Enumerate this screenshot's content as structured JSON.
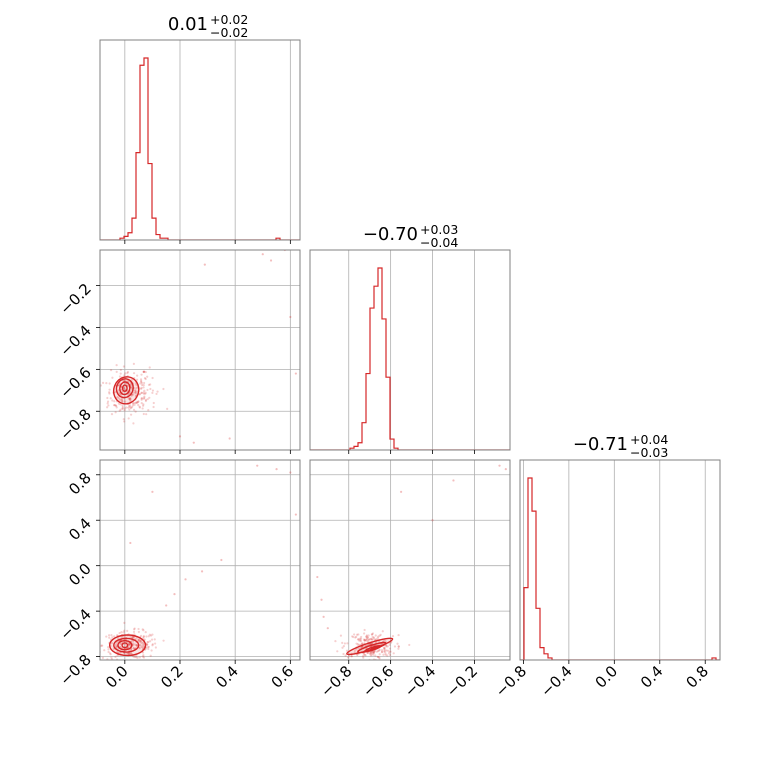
{
  "chart_data": {
    "type": "corner",
    "color": "#d62728",
    "grid": true,
    "parameters": [
      {
        "title": {
          "median": "0.01",
          "plus": "+0.02",
          "minus": "−0.02"
        },
        "range": [
          -0.09,
          0.635
        ],
        "ticks": [
          0.0,
          0.2,
          0.4,
          0.6
        ],
        "tick_labels": [
          "0.0",
          "0.2",
          "0.4",
          "0.6"
        ]
      },
      {
        "title": {
          "median": "−0.70",
          "plus": "+0.03",
          "minus": "−0.04"
        },
        "range": [
          -0.985,
          -0.03
        ],
        "ticks": [
          -0.8,
          -0.6,
          -0.4,
          -0.2
        ],
        "tick_labels": [
          "−0.8",
          "−0.6",
          "−0.4",
          "−0.2"
        ]
      },
      {
        "title": {
          "median": "−0.71",
          "plus": "+0.04",
          "minus": "−0.03"
        },
        "range": [
          -0.83,
          0.93
        ],
        "ticks": [
          -0.8,
          -0.4,
          0.0,
          0.4,
          0.8
        ],
        "tick_labels": [
          "−0.8",
          "−0.4",
          "0.0",
          "0.4",
          "0.8"
        ]
      }
    ],
    "histograms": [
      {
        "param": 0,
        "bin_start": -0.09,
        "bin_width": 0.0145,
        "counts": [
          0,
          0,
          0,
          0,
          0,
          1,
          2,
          4,
          12,
          48,
          96,
          100,
          42,
          12,
          3,
          1,
          1,
          0,
          0,
          0,
          0,
          0,
          0,
          0,
          0,
          0,
          0,
          0,
          0,
          0,
          0,
          0,
          0,
          0,
          0,
          0,
          0,
          0,
          0,
          0,
          0,
          0,
          0,
          0,
          1,
          0,
          0,
          0,
          0,
          0
        ]
      },
      {
        "param": 1,
        "bin_start": -0.985,
        "bin_width": 0.0191,
        "counts": [
          0,
          0,
          0,
          0,
          0,
          0,
          0,
          0,
          0,
          0,
          1,
          2,
          4,
          15,
          42,
          78,
          90,
          100,
          72,
          40,
          6,
          1,
          0,
          0,
          0,
          0,
          0,
          0,
          0,
          0,
          0,
          0,
          0,
          0,
          0,
          0,
          0,
          0,
          0,
          0,
          0,
          0,
          0,
          0,
          0,
          0,
          0,
          0,
          0,
          0
        ]
      },
      {
        "param": 2,
        "bin_start": -0.83,
        "bin_width": 0.0352,
        "counts": [
          0,
          35,
          88,
          72,
          25,
          6,
          3,
          1,
          0,
          0,
          0,
          0,
          0,
          0,
          0,
          0,
          0,
          0,
          0,
          0,
          0,
          0,
          0,
          0,
          0,
          0,
          0,
          0,
          0,
          0,
          0,
          0,
          0,
          0,
          0,
          0,
          0,
          0,
          0,
          0,
          0,
          0,
          0,
          0,
          0,
          0,
          0,
          0,
          1,
          0
        ]
      }
    ],
    "scatter_panels": [
      {
        "x_param": 0,
        "y_param": 1,
        "contours": [
          {
            "cx": 0.005,
            "cy": -0.7,
            "rx": 0.045,
            "ry": 0.065,
            "rot": 20
          },
          {
            "cx": 0.0,
            "cy": -0.69,
            "rx": 0.03,
            "ry": 0.045,
            "rot": 15
          },
          {
            "cx": 0.0,
            "cy": -0.69,
            "rx": 0.018,
            "ry": 0.03,
            "rot": 10
          },
          {
            "cx": 0.0,
            "cy": -0.69,
            "rx": 0.008,
            "ry": 0.015,
            "rot": 0
          }
        ],
        "cloud": {
          "cx": 0.02,
          "cy": -0.71,
          "sx": 0.045,
          "sy": 0.055
        },
        "outliers": [
          [
            0.5,
            -0.05
          ],
          [
            0.53,
            -0.08
          ],
          [
            0.58,
            -0.03
          ],
          [
            0.29,
            -0.1
          ],
          [
            0.2,
            -0.92
          ],
          [
            0.25,
            -0.95
          ],
          [
            0.38,
            -0.93
          ],
          [
            0.6,
            -0.35
          ],
          [
            0.62,
            -0.62
          ]
        ]
      },
      {
        "x_param": 0,
        "y_param": 2,
        "contours": [
          {
            "cx": 0.01,
            "cy": -0.7,
            "rx": 0.065,
            "ry": 0.09,
            "rot": 0
          },
          {
            "cx": 0.005,
            "cy": -0.7,
            "rx": 0.045,
            "ry": 0.06,
            "rot": 0
          },
          {
            "cx": 0.0,
            "cy": -0.7,
            "rx": 0.025,
            "ry": 0.04,
            "rot": 0
          },
          {
            "cx": 0.0,
            "cy": -0.7,
            "rx": 0.01,
            "ry": 0.02,
            "rot": 0
          }
        ],
        "cloud": {
          "cx": 0.02,
          "cy": -0.7,
          "sx": 0.05,
          "sy": 0.06
        },
        "outliers": [
          [
            0.48,
            0.88
          ],
          [
            0.55,
            0.85
          ],
          [
            0.6,
            0.82
          ],
          [
            0.62,
            0.45
          ],
          [
            0.1,
            0.65
          ],
          [
            0.02,
            0.2
          ],
          [
            0.28,
            -0.05
          ],
          [
            0.22,
            -0.12
          ],
          [
            0.35,
            0.05
          ],
          [
            0.15,
            -0.35
          ],
          [
            0.18,
            -0.25
          ]
        ]
      },
      {
        "x_param": 1,
        "y_param": 2,
        "contours": [
          {
            "cx": -0.7,
            "cy": -0.71,
            "rx": 0.115,
            "ry": 0.03,
            "rot": -18
          },
          {
            "cx": -0.69,
            "cy": -0.72,
            "rx": 0.07,
            "ry": 0.02,
            "rot": -18
          },
          {
            "cx": -0.685,
            "cy": -0.73,
            "rx": 0.04,
            "ry": 0.012,
            "rot": -18
          },
          {
            "cx": -0.68,
            "cy": -0.73,
            "rx": 0.015,
            "ry": 0.006,
            "rot": -18
          }
        ],
        "cloud": {
          "cx": -0.7,
          "cy": -0.71,
          "sx": 0.06,
          "sy": 0.06
        },
        "outliers": [
          [
            -0.08,
            0.88
          ],
          [
            -0.05,
            0.85
          ],
          [
            -0.55,
            0.65
          ],
          [
            -0.4,
            0.4
          ],
          [
            -0.3,
            0.75
          ],
          [
            -0.95,
            -0.1
          ],
          [
            -0.93,
            -0.3
          ],
          [
            -0.92,
            -0.45
          ],
          [
            -0.9,
            -0.55
          ]
        ]
      }
    ]
  }
}
